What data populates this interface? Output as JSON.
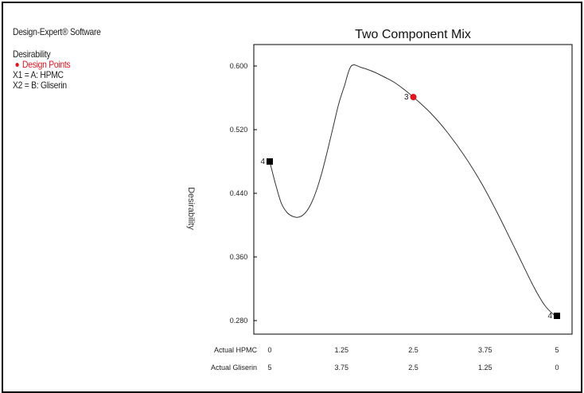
{
  "software": "Design-Expert® Software",
  "legend": {
    "response": "Desirability",
    "design_points_label": "Design Points",
    "x1": "X1 = A: HPMC",
    "x2": "X2 = B: Gliserin"
  },
  "colors": {
    "design_point": "#e0141e",
    "curve": "#333333",
    "marker": "#000000"
  },
  "chart_data": {
    "type": "line",
    "title": "Two Component Mix",
    "ylabel": "Desirability",
    "xlabel_rows": [
      "Actual HPMC",
      "Actual Gliserin"
    ],
    "x_ticks": [
      0,
      1.25,
      2.5,
      3.75,
      5
    ],
    "x2_ticks": [
      5,
      3.75,
      2.5,
      1.25,
      0
    ],
    "y_ticks": [
      "0.280",
      "0.360",
      "0.440",
      "0.520",
      "0.600"
    ],
    "xlim": [
      0,
      5
    ],
    "ylim": [
      0.263,
      0.627
    ],
    "series": [
      {
        "x": [
          0,
          0.1,
          0.2,
          0.3,
          0.4,
          0.5,
          0.6,
          0.7,
          0.8,
          0.9,
          1.0,
          1.1,
          1.2,
          1.3,
          1.42,
          1.6,
          1.8,
          2.0,
          2.2,
          2.5,
          2.8,
          3.1,
          3.4,
          3.7,
          4.0,
          4.3,
          4.6,
          4.8,
          5.0
        ],
        "y": [
          0.48,
          0.452,
          0.428,
          0.416,
          0.411,
          0.41,
          0.414,
          0.424,
          0.441,
          0.464,
          0.492,
          0.522,
          0.552,
          0.575,
          0.6,
          0.598,
          0.593,
          0.586,
          0.578,
          0.561,
          0.541,
          0.516,
          0.486,
          0.451,
          0.41,
          0.366,
          0.322,
          0.298,
          0.284
        ]
      }
    ],
    "design_points": [
      {
        "x": 0,
        "y": 0.48,
        "label": "4",
        "marker": "square"
      },
      {
        "x": 2.5,
        "y": 0.561,
        "label": "3",
        "marker": "circle"
      },
      {
        "x": 5,
        "y": 0.286,
        "label": "4",
        "marker": "square"
      }
    ]
  }
}
